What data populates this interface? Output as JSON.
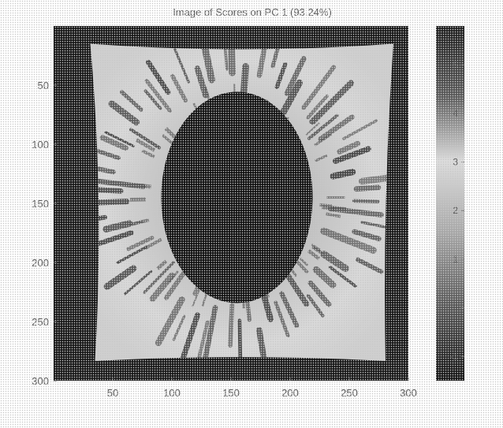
{
  "chart_data": {
    "type": "heatmap",
    "title": "Image of Scores on PC 1 (93.24%)",
    "xlabel": "",
    "ylabel": "",
    "x_ticks": [
      50,
      100,
      150,
      200,
      250,
      300
    ],
    "y_ticks": [
      50,
      100,
      150,
      200,
      250,
      300
    ],
    "xlim": [
      0,
      300
    ],
    "ylim": [
      0,
      300
    ],
    "colorbar": {
      "ticks": [
        5,
        4,
        3,
        2,
        1,
        0,
        -1
      ],
      "range": [
        -1.5,
        5.8
      ],
      "colormap": "gray"
    },
    "image_description_values": {
      "background_value": -1.5,
      "pupil_center": [
        155,
        145
      ],
      "pupil_radii": [
        80,
        105
      ],
      "pupil_value": -1.3,
      "iris_typical_value": 3.5,
      "iris_extent": {
        "x": [
          15,
          290
        ],
        "y": [
          15,
          290
        ]
      }
    }
  },
  "colors": {
    "frame": "#1a1a1a",
    "iris_light": "#d9d9d9",
    "iris_dark": "#3a3a3a",
    "pupil": "#141414",
    "text": "#555555"
  }
}
